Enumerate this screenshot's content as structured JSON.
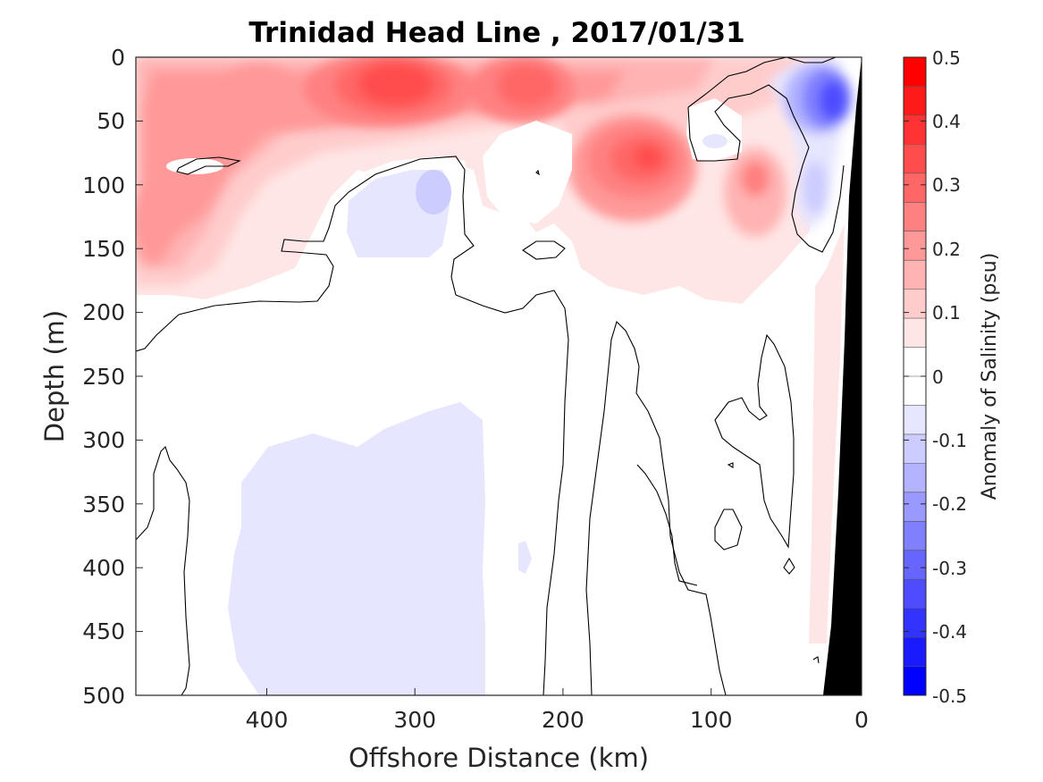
{
  "chart_data": {
    "type": "heatmap",
    "title": "Trinidad Head Line , 2017/01/31",
    "xlabel": "Offshore Distance (km)",
    "ylabel": "Depth (m)",
    "xlim": [
      490,
      0
    ],
    "ylim": [
      0,
      500
    ],
    "x_ticks": [
      "400",
      "300",
      "200",
      "100",
      "0"
    ],
    "y_ticks": [
      "0",
      "50",
      "100",
      "150",
      "200",
      "250",
      "300",
      "350",
      "400",
      "450",
      "500"
    ],
    "colorbar": {
      "label": "Anomaly of Salinity (psu)",
      "range": [
        -0.5,
        0.5
      ],
      "step": 0.05,
      "ticks": [
        "0.5",
        "0.4",
        "0.3",
        "0.2",
        "0.1",
        "0",
        "-0.1",
        "-0.2",
        "-0.3",
        "-0.4",
        "-0.5"
      ],
      "colors_top_to_bottom": [
        "#ff0000",
        "#ff1a1a",
        "#ff3333",
        "#ff4d4d",
        "#ff6666",
        "#ff8080",
        "#ff9999",
        "#ffb3b3",
        "#ffcccc",
        "#ffe6e6",
        "#ffffff",
        "#ffffff",
        "#e6e6ff",
        "#ccccff",
        "#b3b3ff",
        "#9999ff",
        "#8080ff",
        "#6666ff",
        "#4d4dff",
        "#3333ff",
        "#1a1aff",
        "#0000ff"
      ]
    },
    "features": [
      {
        "desc": "positive anomaly core",
        "x": 320,
        "y": 25,
        "value": 0.35
      },
      {
        "desc": "positive anomaly core",
        "x": 235,
        "y": 25,
        "value": 0.3
      },
      {
        "desc": "positive anomaly core",
        "x": 145,
        "y": 85,
        "value": 0.35
      },
      {
        "desc": "positive anomaly",
        "x": 470,
        "y": 140,
        "value": 0.2
      },
      {
        "desc": "negative anomaly core",
        "x": 15,
        "y": 35,
        "value": -0.35
      },
      {
        "desc": "negative anomaly",
        "x": 290,
        "y": 105,
        "value": -0.1
      },
      {
        "desc": "negative anomaly",
        "x": 340,
        "y": 400,
        "value": -0.05
      }
    ],
    "land_color": "#000000",
    "contour_color": "#000000"
  }
}
